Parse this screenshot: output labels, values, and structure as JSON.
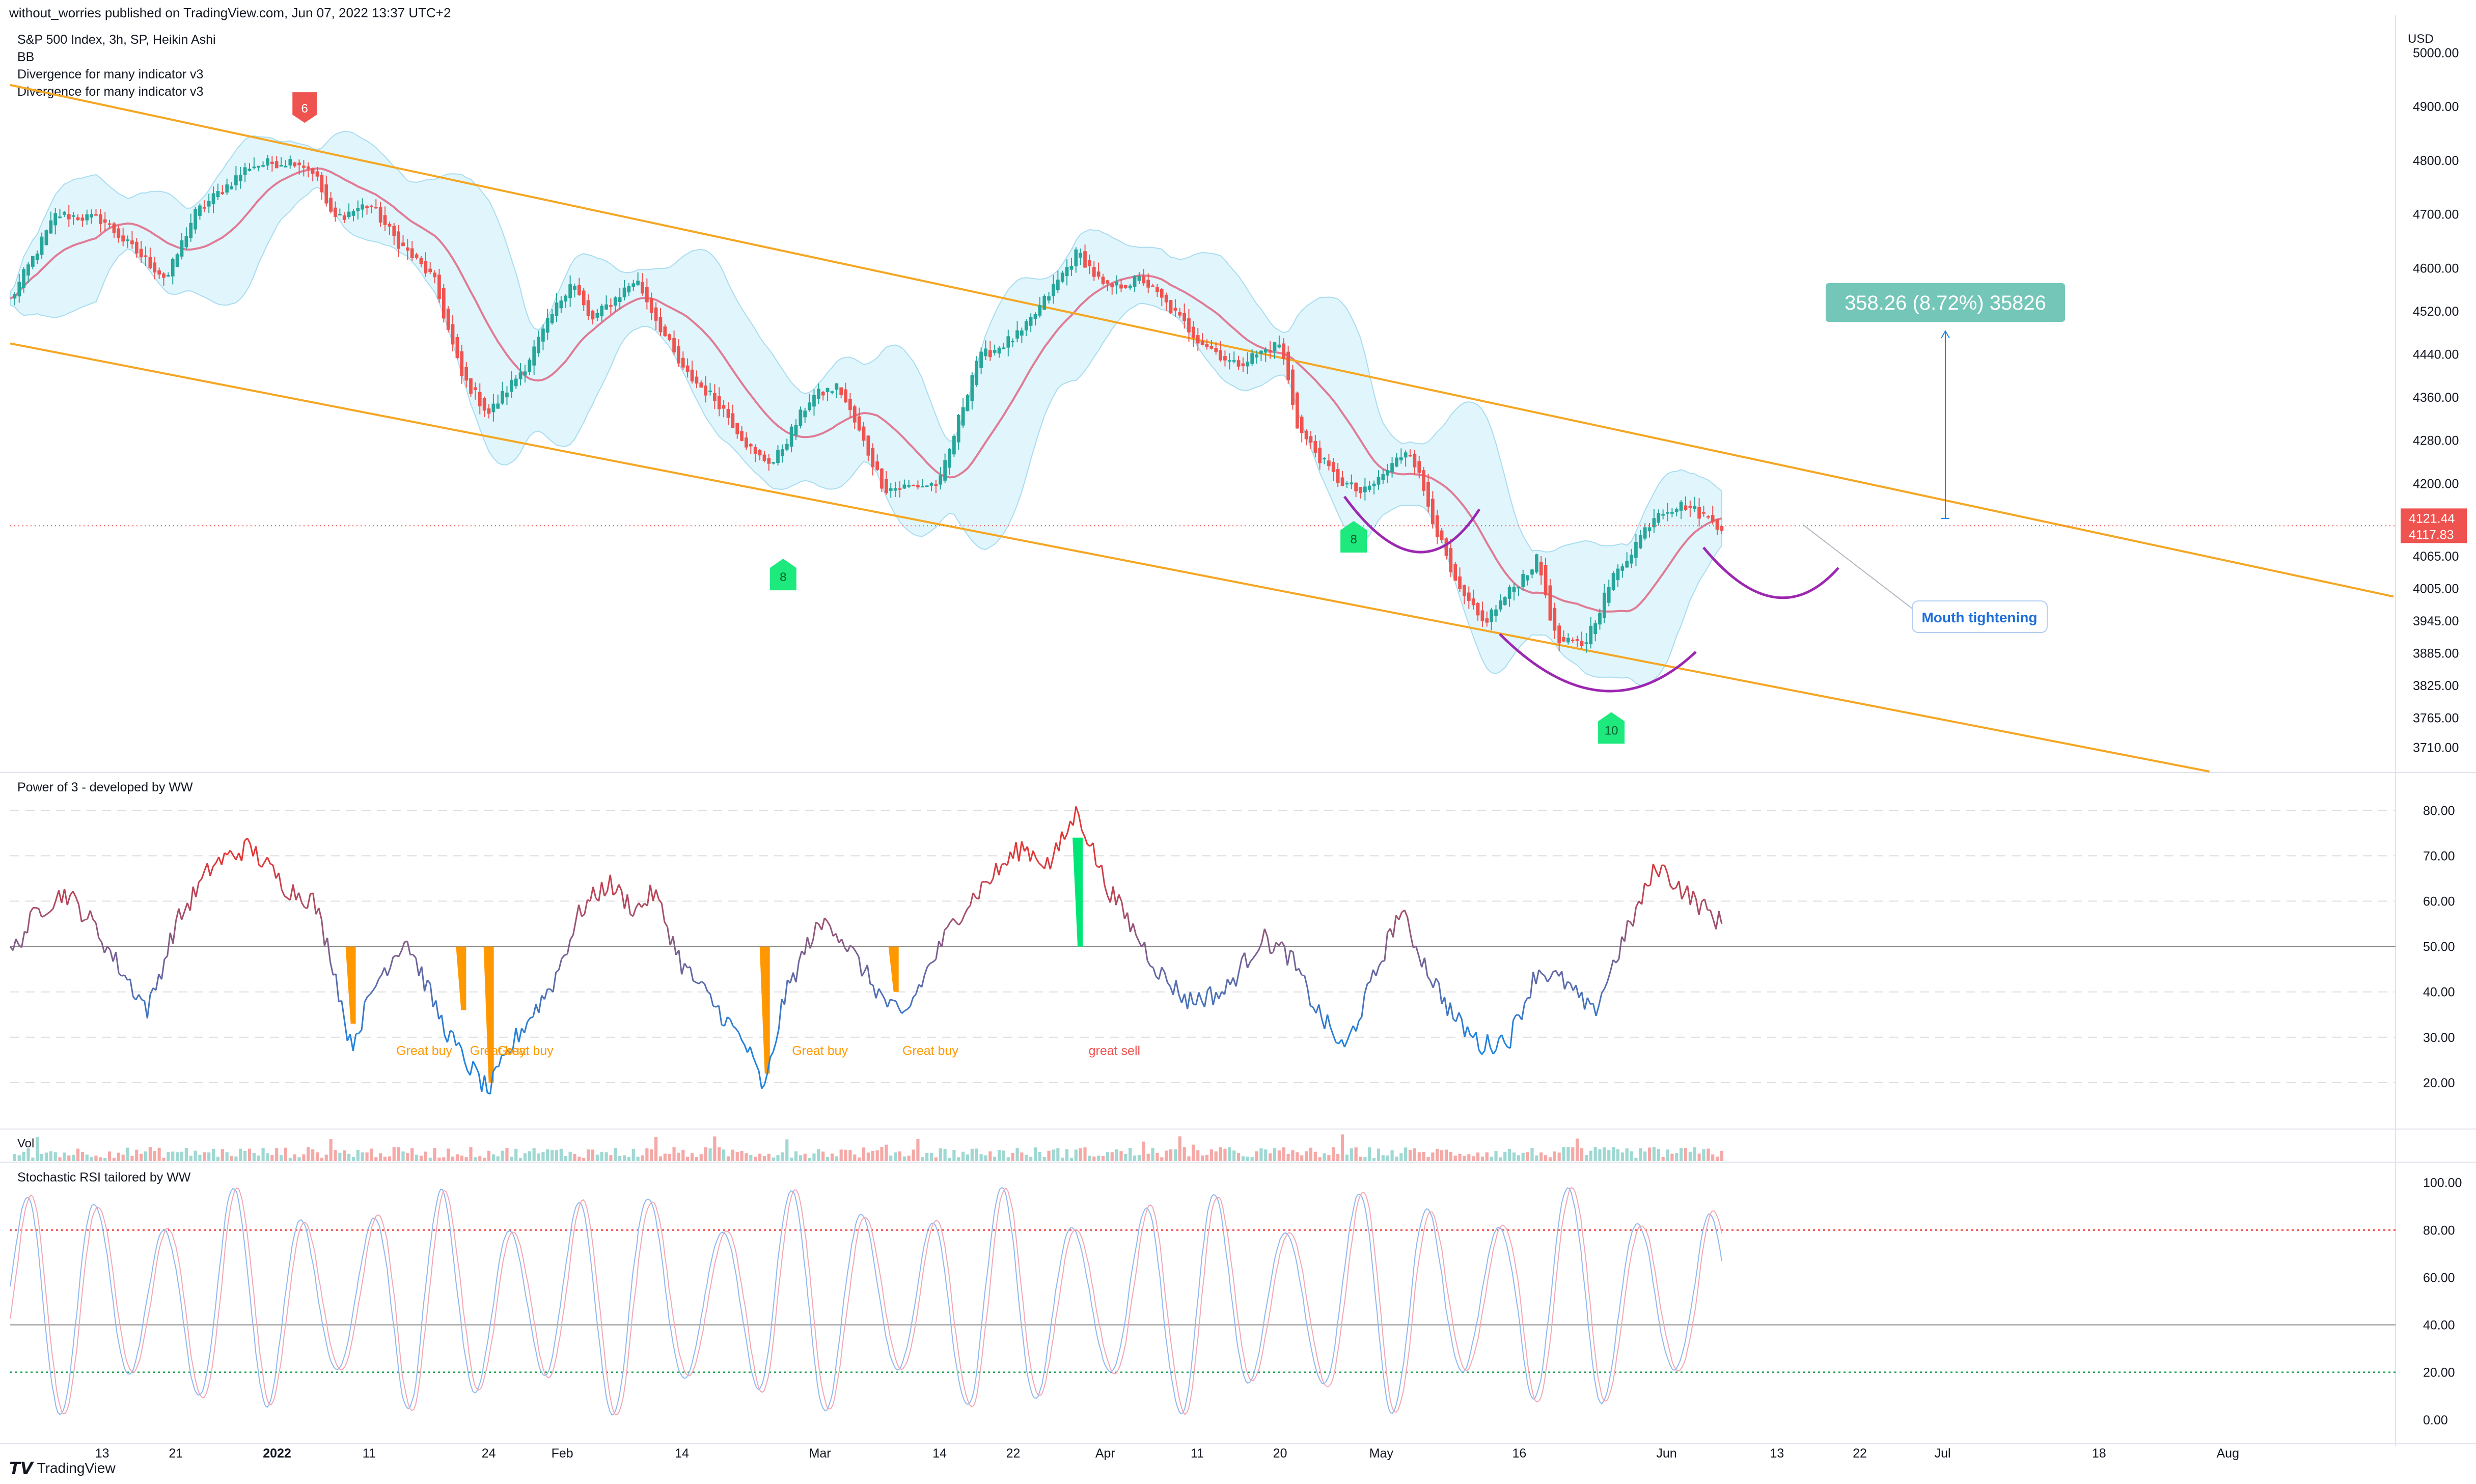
{
  "header": {
    "published": "without_worries published on TradingView.com, Jun 07, 2022 13:37 UTC+2"
  },
  "legend": {
    "symbol": "S&P 500 Index, 3h, SP, Heikin Ashi",
    "bb": "BB",
    "div1": "Divergence for many indicator v3",
    "div2": "Divergence for many indicator v3"
  },
  "currency": "USD",
  "footer": {
    "brand": "TradingView"
  },
  "colors": {
    "up": "#26a69a",
    "down": "#ef5350",
    "bbLine": "#e07b94",
    "bbFill": "#d6f1fb",
    "channel": "#f5a623",
    "arc": "#9c27b0",
    "greatBuy": "#ff9800",
    "greatSell": "#00e676"
  },
  "chart_data": [
    {
      "type": "candlestick",
      "title": "S&P 500 Index, 3h, SP, Heikin Ashi",
      "ylabel": "USD",
      "ylim": [
        3665,
        5060
      ],
      "y_ticks": [
        5000,
        4900,
        4800,
        4700,
        4600,
        4520,
        4440,
        4360,
        4280,
        4200,
        4065,
        4005,
        3945,
        3885,
        3825,
        3765,
        3710
      ],
      "y_tick_labels": [
        "5000.00",
        "4900.00",
        "4800.00",
        "4700.00",
        "4600.00",
        "4520.00",
        "4440.00",
        "4360.00",
        "4280.00",
        "4200.00",
        "4065.00",
        "4005.00",
        "3945.00",
        "3885.00",
        "3825.00",
        "3765.00",
        "3710.00"
      ],
      "x_tick_labels": [
        "13",
        "21",
        "2022",
        "11",
        "24",
        "Feb",
        "14",
        "Mar",
        "14",
        "22",
        "Apr",
        "11",
        "20",
        "May",
        "16",
        "Jun",
        "13",
        "22",
        "Jul",
        "18",
        "Aug"
      ],
      "x_tick_dates": [
        "2021-12-13",
        "2021-12-21",
        "2022-01-01",
        "2022-01-11",
        "2022-01-24",
        "2022-02-01",
        "2022-02-14",
        "2022-03-01",
        "2022-03-14",
        "2022-03-22",
        "2022-04-01",
        "2022-04-11",
        "2022-04-20",
        "2022-05-01",
        "2022-05-16",
        "2022-06-01",
        "2022-06-13",
        "2022-06-22",
        "2022-07-01",
        "2022-07-18",
        "2022-08-01"
      ],
      "x_range": [
        "2021-12-03",
        "2022-08-19"
      ],
      "close_path": [
        [
          "2021-12-03",
          4540
        ],
        [
          "2021-12-08",
          4700
        ],
        [
          "2021-12-13",
          4690
        ],
        [
          "2021-12-16",
          4640
        ],
        [
          "2021-12-20",
          4580
        ],
        [
          "2021-12-23",
          4700
        ],
        [
          "2021-12-29",
          4790
        ],
        [
          "2022-01-03",
          4800
        ],
        [
          "2022-01-05",
          4780
        ],
        [
          "2022-01-07",
          4690
        ],
        [
          "2022-01-11",
          4720
        ],
        [
          "2022-01-14",
          4650
        ],
        [
          "2022-01-18",
          4580
        ],
        [
          "2022-01-21",
          4400
        ],
        [
          "2022-01-24",
          4330
        ],
        [
          "2022-01-28",
          4420
        ],
        [
          "2022-02-02",
          4580
        ],
        [
          "2022-02-04",
          4500
        ],
        [
          "2022-02-09",
          4580
        ],
        [
          "2022-02-14",
          4410
        ],
        [
          "2022-02-18",
          4350
        ],
        [
          "2022-02-22",
          4250
        ],
        [
          "2022-02-24",
          4240
        ],
        [
          "2022-02-28",
          4360
        ],
        [
          "2022-03-03",
          4380
        ],
        [
          "2022-03-08",
          4190
        ],
        [
          "2022-03-14",
          4200
        ],
        [
          "2022-03-18",
          4430
        ],
        [
          "2022-03-23",
          4480
        ],
        [
          "2022-03-29",
          4630
        ],
        [
          "2022-04-01",
          4560
        ],
        [
          "2022-04-05",
          4580
        ],
        [
          "2022-04-11",
          4470
        ],
        [
          "2022-04-15",
          4420
        ],
        [
          "2022-04-20",
          4460
        ],
        [
          "2022-04-22",
          4300
        ],
        [
          "2022-04-26",
          4210
        ],
        [
          "2022-04-29",
          4180
        ],
        [
          "2022-05-02",
          4230
        ],
        [
          "2022-05-04",
          4270
        ],
        [
          "2022-05-09",
          4010
        ],
        [
          "2022-05-12",
          3940
        ],
        [
          "2022-05-16",
          4020
        ],
        [
          "2022-05-18",
          4060
        ],
        [
          "2022-05-20",
          3905
        ],
        [
          "2022-05-23",
          3900
        ],
        [
          "2022-05-26",
          4020
        ],
        [
          "2022-05-31",
          4150
        ],
        [
          "2022-06-03",
          4160
        ],
        [
          "2022-06-07",
          4120
        ]
      ],
      "last_price": 4121.44,
      "last_price_labels": [
        "4121.44",
        "4117.83"
      ],
      "annotations": {
        "measure_label": "358.26 (8.72%) 35826",
        "callout": "Mouth tightening",
        "pivots": [
          {
            "label": "6",
            "date": "2022-01-04",
            "price": 4900,
            "kind": "top"
          },
          {
            "label": "8",
            "date": "2022-02-25",
            "price": 4030,
            "kind": "bottom"
          },
          {
            "label": "8",
            "date": "2022-04-28",
            "price": 4100,
            "kind": "bottom"
          },
          {
            "label": "10",
            "date": "2022-05-26",
            "price": 3745,
            "kind": "bottom"
          }
        ],
        "channel_upper": [
          [
            "2021-12-03",
            4940
          ],
          [
            "2022-08-19",
            3990
          ]
        ],
        "channel_lower": [
          [
            "2021-12-03",
            4460
          ],
          [
            "2022-07-30",
            3665
          ]
        ]
      }
    },
    {
      "type": "line",
      "title": "Power of 3 - developed by WW",
      "ylim": [
        10,
        88
      ],
      "y_ticks": [
        20,
        30,
        40,
        50,
        60,
        70,
        80
      ],
      "y_tick_labels": [
        "20.00",
        "30.00",
        "40.00",
        "50.00",
        "60.00",
        "70.00",
        "80.00"
      ],
      "baseline": 50,
      "series_path": [
        [
          "2021-12-03",
          48
        ],
        [
          "2021-12-06",
          58
        ],
        [
          "2021-12-09",
          62
        ],
        [
          "2021-12-12",
          55
        ],
        [
          "2021-12-15",
          45
        ],
        [
          "2021-12-18",
          36
        ],
        [
          "2021-12-21",
          55
        ],
        [
          "2021-12-25",
          68
        ],
        [
          "2021-12-29",
          72
        ],
        [
          "2022-01-02",
          63
        ],
        [
          "2022-01-05",
          60
        ],
        [
          "2022-01-07",
          47
        ],
        [
          "2022-01-09",
          28
        ],
        [
          "2022-01-12",
          43
        ],
        [
          "2022-01-15",
          52
        ],
        [
          "2022-01-19",
          33
        ],
        [
          "2022-01-21",
          26
        ],
        [
          "2022-01-24",
          18
        ],
        [
          "2022-01-27",
          30
        ],
        [
          "2022-01-31",
          42
        ],
        [
          "2022-02-03",
          58
        ],
        [
          "2022-02-06",
          64
        ],
        [
          "2022-02-09",
          58
        ],
        [
          "2022-02-11",
          62
        ],
        [
          "2022-02-14",
          46
        ],
        [
          "2022-02-18",
          36
        ],
        [
          "2022-02-21",
          28
        ],
        [
          "2022-02-23",
          18
        ],
        [
          "2022-02-25",
          38
        ],
        [
          "2022-02-28",
          52
        ],
        [
          "2022-03-02",
          56
        ],
        [
          "2022-03-05",
          47
        ],
        [
          "2022-03-08",
          38
        ],
        [
          "2022-03-10",
          34
        ],
        [
          "2022-03-13",
          46
        ],
        [
          "2022-03-16",
          57
        ],
        [
          "2022-03-19",
          64
        ],
        [
          "2022-03-23",
          72
        ],
        [
          "2022-03-26",
          68
        ],
        [
          "2022-03-29",
          80
        ],
        [
          "2022-04-01",
          64
        ],
        [
          "2022-04-04",
          54
        ],
        [
          "2022-04-07",
          44
        ],
        [
          "2022-04-10",
          38
        ],
        [
          "2022-04-14",
          40
        ],
        [
          "2022-04-18",
          52
        ],
        [
          "2022-04-21",
          48
        ],
        [
          "2022-04-24",
          36
        ],
        [
          "2022-04-27",
          27
        ],
        [
          "2022-04-30",
          42
        ],
        [
          "2022-05-03",
          58
        ],
        [
          "2022-05-06",
          45
        ],
        [
          "2022-05-09",
          34
        ],
        [
          "2022-05-12",
          28
        ],
        [
          "2022-05-15",
          30
        ],
        [
          "2022-05-18",
          45
        ],
        [
          "2022-05-21",
          42
        ],
        [
          "2022-05-24",
          35
        ],
        [
          "2022-05-27",
          50
        ],
        [
          "2022-05-31",
          68
        ],
        [
          "2022-06-03",
          62
        ],
        [
          "2022-06-07",
          55
        ]
      ],
      "labels": [
        {
          "text": "Great buy",
          "date": "2022-01-17",
          "value": 27
        },
        {
          "text": "Great buy",
          "date": "2022-01-25",
          "value": 27
        },
        {
          "text": "Great buy",
          "date": "2022-01-28",
          "value": 27
        },
        {
          "text": "Great buy",
          "date": "2022-03-01",
          "value": 27
        },
        {
          "text": "Great buy",
          "date": "2022-03-13",
          "value": 27
        },
        {
          "text": "great sell",
          "date": "2022-04-02",
          "value": 27
        }
      ],
      "bars": [
        {
          "date": "2022-01-09",
          "from": 50,
          "to": 33,
          "kind": "buy"
        },
        {
          "date": "2022-01-21",
          "from": 50,
          "to": 36,
          "kind": "buy"
        },
        {
          "date": "2022-01-24",
          "from": 50,
          "to": 20,
          "kind": "buy"
        },
        {
          "date": "2022-02-23",
          "from": 50,
          "to": 22,
          "kind": "buy"
        },
        {
          "date": "2022-03-09",
          "from": 50,
          "to": 40,
          "kind": "buy"
        },
        {
          "date": "2022-03-29",
          "from": 50,
          "to": 74,
          "kind": "sell"
        }
      ]
    },
    {
      "type": "bar",
      "title": "Vol"
    },
    {
      "type": "line",
      "title": "Stochastic RSI tailored by WW",
      "ylim": [
        -8,
        108
      ],
      "y_ticks": [
        0,
        20,
        40,
        60,
        80,
        100
      ],
      "y_tick_labels": [
        "0.00",
        "20.00",
        "40.00",
        "60.00",
        "80.00",
        "100.00"
      ],
      "levels": {
        "upper": 80,
        "middle": 40,
        "lower": 20
      }
    }
  ]
}
